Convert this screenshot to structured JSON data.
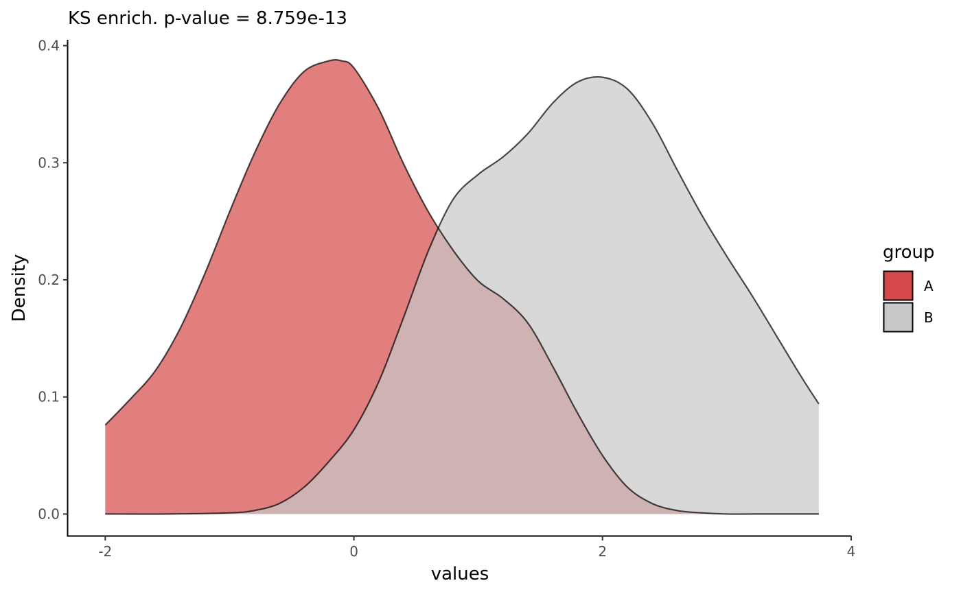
{
  "chart_data": {
    "type": "area",
    "title": "KS enrich. p-value = 8.759e-13",
    "xlabel": "values",
    "ylabel": "Density",
    "xlim": [
      -2.3,
      4.0
    ],
    "ylim": [
      -0.0185,
      0.405
    ],
    "x_ticks": [
      -2,
      0,
      2,
      4
    ],
    "x_tick_labels": [
      "-2",
      "0",
      "2",
      "4"
    ],
    "y_ticks": [
      0.0,
      0.1,
      0.2,
      0.3,
      0.4
    ],
    "y_tick_labels": [
      "0.0",
      "0.1",
      "0.2",
      "0.3",
      "0.4"
    ],
    "grid": false,
    "legend": {
      "title": "group",
      "placement": "right"
    },
    "series": [
      {
        "name": "A",
        "color": "#d44949",
        "x": [
          -2.0,
          -1.8,
          -1.6,
          -1.4,
          -1.2,
          -1.0,
          -0.8,
          -0.6,
          -0.4,
          -0.2,
          -0.1,
          0.0,
          0.2,
          0.4,
          0.6,
          0.8,
          1.0,
          1.2,
          1.4,
          1.6,
          1.8,
          2.0,
          2.2,
          2.4,
          2.6,
          2.8,
          3.0,
          3.2,
          3.4,
          3.6,
          3.74
        ],
        "values": [
          0.076,
          0.098,
          0.122,
          0.158,
          0.205,
          0.258,
          0.308,
          0.35,
          0.378,
          0.387,
          0.387,
          0.381,
          0.346,
          0.299,
          0.258,
          0.225,
          0.199,
          0.184,
          0.163,
          0.126,
          0.086,
          0.05,
          0.023,
          0.009,
          0.003,
          0.001,
          0.0,
          0.0,
          0.0,
          0.0,
          0.0
        ]
      },
      {
        "name": "B",
        "color": "#c8c8c8",
        "x": [
          -2.0,
          -1.5,
          -1.0,
          -0.8,
          -0.6,
          -0.4,
          -0.2,
          0.0,
          0.2,
          0.4,
          0.6,
          0.8,
          1.0,
          1.2,
          1.4,
          1.6,
          1.8,
          2.0,
          2.2,
          2.4,
          2.6,
          2.8,
          3.0,
          3.2,
          3.4,
          3.6,
          3.74
        ],
        "values": [
          0.0,
          0.0,
          0.001,
          0.003,
          0.009,
          0.023,
          0.045,
          0.072,
          0.113,
          0.168,
          0.225,
          0.269,
          0.29,
          0.305,
          0.325,
          0.351,
          0.369,
          0.373,
          0.363,
          0.334,
          0.294,
          0.255,
          0.22,
          0.187,
          0.152,
          0.117,
          0.094
        ]
      }
    ]
  }
}
